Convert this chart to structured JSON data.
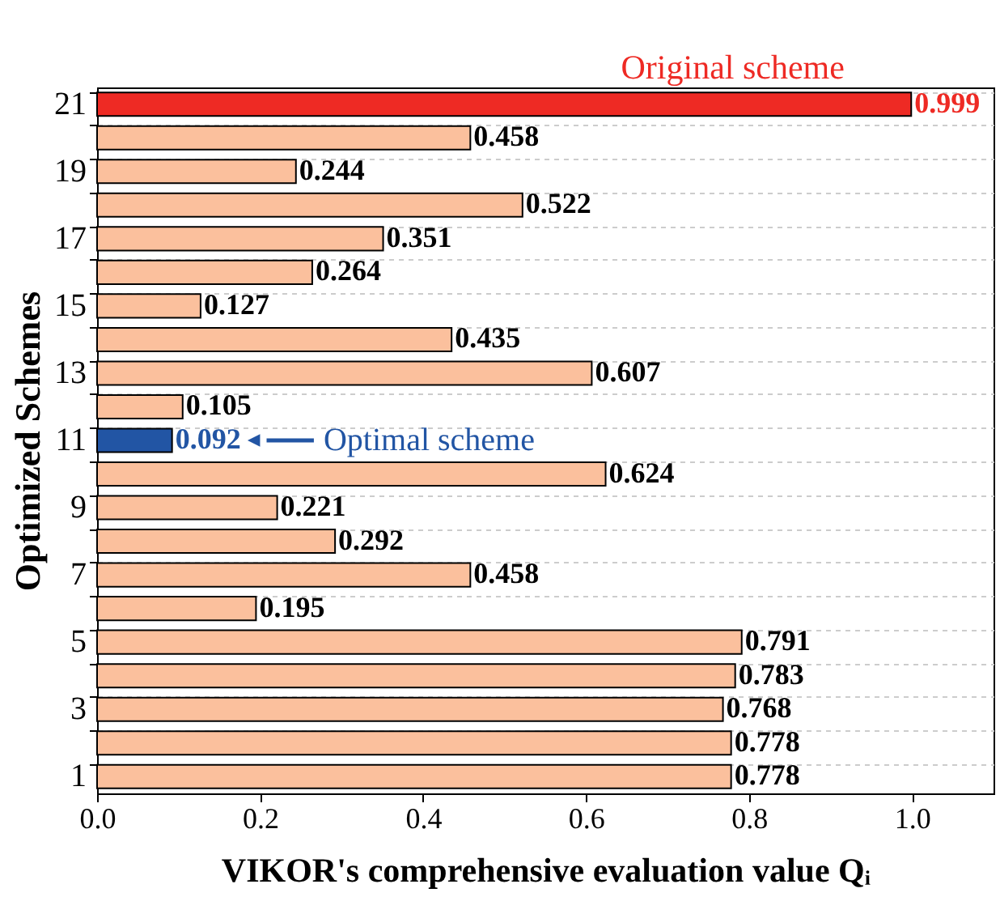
{
  "chart_data": {
    "type": "bar",
    "orientation": "horizontal",
    "ylabel": "Optimized Schemes",
    "xlabel": "VIKOR's comprehensive evaluation value Qᵢ",
    "categories": [
      "21",
      null,
      "19",
      null,
      "17",
      null,
      "15",
      null,
      "13",
      null,
      "11",
      null,
      "9",
      null,
      "7",
      null,
      "5",
      null,
      "3",
      null,
      "1"
    ],
    "values": [
      0.999,
      0.458,
      0.244,
      0.522,
      0.351,
      0.264,
      0.127,
      0.435,
      0.607,
      0.105,
      0.092,
      0.624,
      0.221,
      0.292,
      0.458,
      0.195,
      0.791,
      0.783,
      0.768,
      0.778,
      0.778
    ],
    "colors": [
      "#ee2a24",
      "#fbc09d",
      "#fbc09d",
      "#fbc09d",
      "#fbc09d",
      "#fbc09d",
      "#fbc09d",
      "#fbc09d",
      "#fbc09d",
      "#fbc09d",
      "#2255a4",
      "#fbc09d",
      "#fbc09d",
      "#fbc09d",
      "#fbc09d",
      "#fbc09d",
      "#fbc09d",
      "#fbc09d",
      "#fbc09d",
      "#fbc09d",
      "#fbc09d"
    ],
    "data_labels": true,
    "xlim": [
      0,
      1.1
    ],
    "xticks": [
      {
        "value": 0,
        "label": "0.0"
      },
      0.2,
      0.4,
      0.6,
      0.8,
      {
        "value": 1,
        "label": "1.0"
      }
    ],
    "grid": "y",
    "annotations": [
      {
        "text": "Original scheme",
        "x": 0.78,
        "y": "21"
      },
      {
        "text": "Optimal scheme",
        "x": 0.2,
        "y": "11"
      }
    ]
  }
}
